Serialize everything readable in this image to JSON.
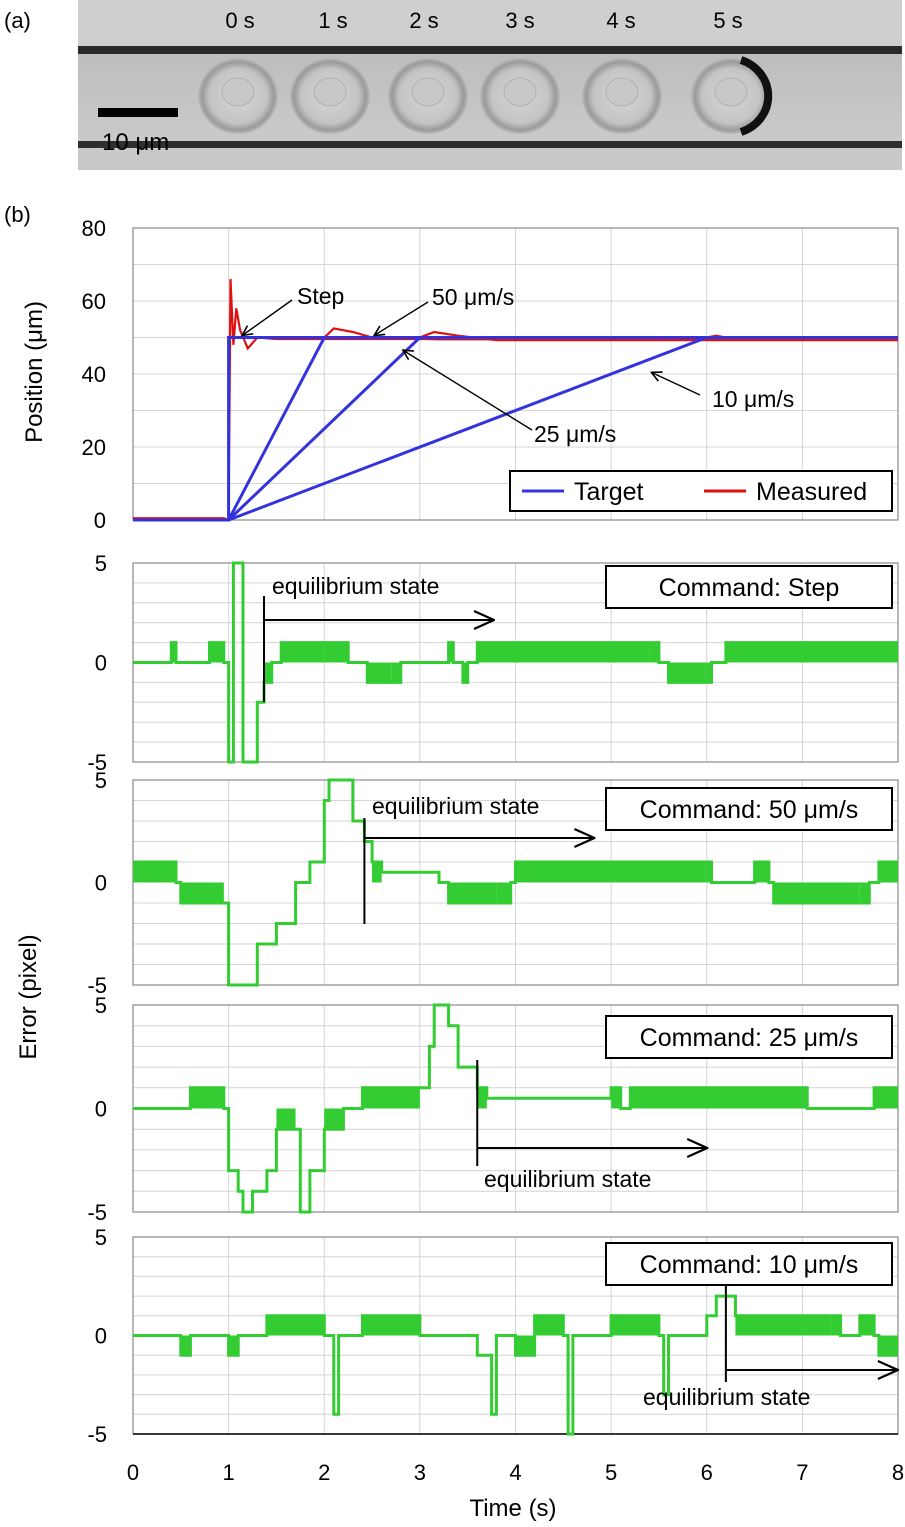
{
  "panel_a": {
    "label": "(a)",
    "time_labels": [
      "0 s",
      "1 s",
      "2 s",
      "3 s",
      "4 s",
      "5 s"
    ],
    "scale_bar_label": "10 μm"
  },
  "panel_b": {
    "label": "(b)"
  },
  "chart_data": [
    {
      "type": "line",
      "id": "position",
      "ylabel": "Position (μm)",
      "ylim": [
        0,
        80
      ],
      "yticks": [
        0,
        20,
        40,
        60,
        80
      ],
      "xlim": [
        0,
        8
      ],
      "grid": true,
      "legend": {
        "placement": "bottom-right",
        "entries": [
          "Target",
          "Measured"
        ]
      },
      "series": [
        {
          "name": "Target",
          "color": "#3333dd",
          "description_free": true,
          "paths": [
            [
              [
                0,
                0
              ],
              [
                1,
                0
              ],
              [
                1,
                50
              ],
              [
                8,
                50
              ]
            ],
            [
              [
                1,
                0
              ],
              [
                2,
                50
              ],
              [
                8,
                50
              ]
            ],
            [
              [
                1,
                0
              ],
              [
                3,
                50
              ],
              [
                8,
                50
              ]
            ],
            [
              [
                1,
                0
              ],
              [
                6,
                50
              ],
              [
                8,
                50
              ]
            ]
          ]
        },
        {
          "name": "Measured",
          "color": "#dd1111",
          "paths": [
            [
              [
                0,
                0.5
              ],
              [
                0.95,
                0.5
              ],
              [
                1.0,
                0
              ],
              [
                1.02,
                66
              ],
              [
                1.05,
                48
              ],
              [
                1.08,
                58
              ],
              [
                1.12,
                52
              ],
              [
                1.2,
                47
              ],
              [
                1.3,
                50
              ],
              [
                1.5,
                49.6
              ],
              [
                8,
                49.6
              ]
            ],
            [
              [
                1,
                0
              ],
              [
                2.0,
                50
              ],
              [
                2.1,
                52.5
              ],
              [
                2.3,
                51.5
              ],
              [
                2.5,
                50
              ],
              [
                3.2,
                49.5
              ],
              [
                8,
                49.5
              ]
            ],
            [
              [
                1,
                0
              ],
              [
                3.0,
                50
              ],
              [
                3.15,
                51.5
              ],
              [
                3.4,
                50.5
              ],
              [
                3.8,
                49.3
              ],
              [
                8,
                49.3
              ]
            ],
            [
              [
                1,
                0
              ],
              [
                6.0,
                50
              ],
              [
                6.1,
                50.5
              ],
              [
                6.3,
                49.5
              ],
              [
                8,
                49.5
              ]
            ]
          ]
        }
      ],
      "annotations": [
        {
          "text": "Step",
          "point": [
            1.1,
            50
          ]
        },
        {
          "text": "50 μm/s",
          "point": [
            2.5,
            50
          ]
        },
        {
          "text": "25 μm/s",
          "point": [
            2.8,
            46
          ]
        },
        {
          "text": "10 μm/s",
          "point": [
            5.4,
            41
          ]
        }
      ]
    },
    {
      "type": "line",
      "id": "error-step",
      "ylim": [
        -5,
        5
      ],
      "yticks": [
        -5,
        0,
        5
      ],
      "xlim": [
        0,
        8
      ],
      "grid": true,
      "command": "Command:  Step",
      "equilibrium_label": "equilibrium state",
      "equilibrium_time": 1.37,
      "series": [
        {
          "name": "Error",
          "color": "#33cc33",
          "points": [
            [
              0,
              0
            ],
            [
              0.4,
              1
            ],
            [
              0.45,
              0
            ],
            [
              0.8,
              1
            ],
            [
              0.95,
              0
            ],
            [
              1.0,
              -5
            ],
            [
              1.05,
              5
            ],
            [
              1.1,
              5
            ],
            [
              1.15,
              -5
            ],
            [
              1.25,
              -5
            ],
            [
              1.3,
              -2
            ],
            [
              1.37,
              -1
            ],
            [
              1.45,
              0
            ],
            [
              1.55,
              1
            ],
            [
              2.0,
              1
            ],
            [
              2.25,
              0
            ],
            [
              2.45,
              -1
            ],
            [
              2.7,
              -1
            ],
            [
              2.8,
              0
            ],
            [
              3.3,
              1
            ],
            [
              3.35,
              0
            ],
            [
              3.45,
              -1
            ],
            [
              3.5,
              0
            ],
            [
              3.6,
              1
            ],
            [
              5.4,
              1
            ],
            [
              5.5,
              0
            ],
            [
              5.6,
              -1
            ],
            [
              6.0,
              -1
            ],
            [
              6.05,
              0
            ],
            [
              6.2,
              1
            ],
            [
              8,
              1
            ]
          ]
        }
      ]
    },
    {
      "type": "line",
      "id": "error-50",
      "ylim": [
        -5,
        5
      ],
      "yticks": [
        -5,
        0,
        5
      ],
      "xlim": [
        0,
        8
      ],
      "grid": true,
      "command": "Command:  50 μm/s",
      "equilibrium_label": "equilibrium state",
      "equilibrium_time": 2.42,
      "series": [
        {
          "name": "Error",
          "color": "#33cc33",
          "points": [
            [
              0,
              1
            ],
            [
              0.45,
              0
            ],
            [
              0.5,
              -1
            ],
            [
              0.95,
              -1
            ],
            [
              1.0,
              -5
            ],
            [
              1.2,
              -5
            ],
            [
              1.3,
              -3
            ],
            [
              1.5,
              -2
            ],
            [
              1.7,
              0
            ],
            [
              1.85,
              1
            ],
            [
              2.0,
              4
            ],
            [
              2.05,
              5
            ],
            [
              2.2,
              5
            ],
            [
              2.3,
              3
            ],
            [
              2.42,
              2
            ],
            [
              2.5,
              1
            ],
            [
              2.6,
              0.5
            ],
            [
              3.2,
              0
            ],
            [
              3.3,
              -1
            ],
            [
              3.8,
              -1
            ],
            [
              3.95,
              0
            ],
            [
              4.0,
              1
            ],
            [
              6.0,
              1
            ],
            [
              6.05,
              0
            ],
            [
              6.5,
              1
            ],
            [
              6.65,
              0
            ],
            [
              6.7,
              -1
            ],
            [
              7.6,
              -1
            ],
            [
              7.7,
              0
            ],
            [
              7.8,
              1
            ],
            [
              8,
              1
            ]
          ]
        }
      ]
    },
    {
      "type": "line",
      "id": "error-25",
      "ylim": [
        -5,
        5
      ],
      "yticks": [
        -5,
        0,
        5
      ],
      "xlim": [
        0,
        8
      ],
      "grid": true,
      "command": "Command:  25 μm/s",
      "equilibrium_label": "equilibrium state",
      "equilibrium_time": 3.6,
      "series": [
        {
          "name": "Error",
          "color": "#33cc33",
          "points": [
            [
              0,
              0
            ],
            [
              0.55,
              0
            ],
            [
              0.6,
              1
            ],
            [
              0.95,
              0
            ],
            [
              1.0,
              -3
            ],
            [
              1.1,
              -4
            ],
            [
              1.15,
              -5
            ],
            [
              1.25,
              -4
            ],
            [
              1.4,
              -3
            ],
            [
              1.5,
              -1
            ],
            [
              1.7,
              -1
            ],
            [
              1.75,
              -5
            ],
            [
              1.85,
              -3
            ],
            [
              2.0,
              -1
            ],
            [
              2.2,
              0
            ],
            [
              2.4,
              1
            ],
            [
              3.0,
              1
            ],
            [
              3.1,
              3
            ],
            [
              3.15,
              5
            ],
            [
              3.3,
              4
            ],
            [
              3.4,
              2
            ],
            [
              3.6,
              1
            ],
            [
              3.7,
              0.5
            ],
            [
              5.0,
              1
            ],
            [
              5.1,
              0
            ],
            [
              5.2,
              1
            ],
            [
              7.0,
              1
            ],
            [
              7.05,
              0
            ],
            [
              7.7,
              0
            ],
            [
              7.75,
              1
            ],
            [
              8,
              1
            ]
          ]
        }
      ]
    },
    {
      "type": "line",
      "id": "error-10",
      "ylim": [
        -5,
        5
      ],
      "yticks": [
        -5,
        0,
        5
      ],
      "xlim": [
        0,
        8
      ],
      "xticks": [
        0,
        1,
        2,
        3,
        4,
        5,
        6,
        7,
        8
      ],
      "xlabel": "Time (s)",
      "grid": true,
      "command": "Command:  10 μm/s",
      "equilibrium_label": "equilibrium state",
      "equilibrium_time": 6.2,
      "series": [
        {
          "name": "Error",
          "color": "#33cc33",
          "points": [
            [
              0,
              0
            ],
            [
              0.5,
              -1
            ],
            [
              0.6,
              0
            ],
            [
              1.0,
              -1
            ],
            [
              1.1,
              0
            ],
            [
              1.4,
              1
            ],
            [
              2.0,
              0
            ],
            [
              2.1,
              -4
            ],
            [
              2.15,
              0
            ],
            [
              2.4,
              1
            ],
            [
              3.0,
              0
            ],
            [
              3.6,
              -1
            ],
            [
              3.75,
              -4
            ],
            [
              3.8,
              0
            ],
            [
              4.0,
              -1
            ],
            [
              4.2,
              1
            ],
            [
              4.5,
              0
            ],
            [
              4.55,
              -5
            ],
            [
              4.6,
              0
            ],
            [
              5.0,
              1
            ],
            [
              5.5,
              0
            ],
            [
              5.55,
              -3
            ],
            [
              5.6,
              0
            ],
            [
              6.0,
              1
            ],
            [
              6.1,
              2
            ],
            [
              6.25,
              2
            ],
            [
              6.3,
              1
            ],
            [
              7.3,
              1
            ],
            [
              7.4,
              0
            ],
            [
              7.6,
              1
            ],
            [
              7.75,
              0
            ],
            [
              7.8,
              -1
            ],
            [
              8,
              -1
            ]
          ]
        }
      ]
    }
  ],
  "error_axis_title": "Error (pixel)"
}
